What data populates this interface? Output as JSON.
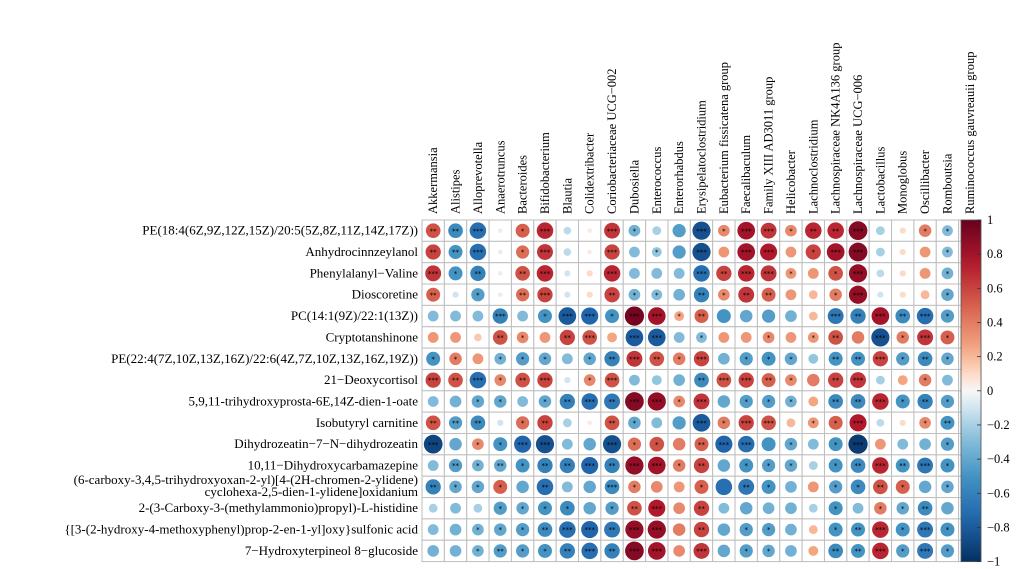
{
  "chart_data": {
    "type": "heatmap",
    "style": "correlation-circles",
    "columns": [
      "Akkermansia",
      "Alistipes",
      "Alloprevotella",
      "Anaerotruncus",
      "Bacteroides",
      "Bifidobacterium",
      "Blautia",
      "Colidextribacter",
      "Coriobacteriaceae UCG−002",
      "Dubosiella",
      "Enterococcus",
      "Enterorhabdus",
      "Erysipelatoclostridium",
      "Eubacterium fissicatena group",
      "Faecalibaculum",
      "Family XIII AD3011 group",
      "Helicobacter",
      "Lachnoclostridium",
      "Lachnospiraceae NK4A136 group",
      "Lachnospiraceae UCG−006",
      "Lactobacillus",
      "Monoglobus",
      "Oscillibacter",
      "Romboutsia",
      "Ruminococcus gauvreauii group"
    ],
    "rows": [
      {
        "label": "PE(18:4(6Z,9Z,12Z,15Z)/20:5(5Z,8Z,11Z,14Z,17Z))",
        "values": [
          0.55,
          -0.55,
          -0.7,
          -0.05,
          0.5,
          0.7,
          -0.15,
          0.05,
          0.65,
          -0.35,
          -0.2,
          -0.45,
          -0.85,
          0.35,
          0.8,
          0.65,
          0.35,
          0.7,
          0.7,
          0.9,
          -0.2,
          0.1,
          0.4,
          -0.3,
          -0.5
        ],
        "stars": [
          "**",
          "**",
          "***",
          "",
          "*",
          "***",
          "",
          "",
          "***",
          "*",
          "",
          "",
          "***",
          "*",
          "***",
          "***",
          "*",
          "**",
          "**",
          "***",
          "",
          "",
          "*",
          "*",
          "*"
        ]
      },
      {
        "label": "Anhydrocinnzeylanol",
        "values": [
          0.6,
          -0.5,
          -0.7,
          -0.05,
          0.45,
          0.65,
          -0.15,
          0.05,
          0.6,
          -0.3,
          -0.25,
          -0.45,
          -0.85,
          0.3,
          0.8,
          0.75,
          0.3,
          0.6,
          0.8,
          0.9,
          -0.2,
          0.1,
          0.3,
          -0.3,
          -0.45
        ],
        "stars": [
          "**",
          "**",
          "***",
          "",
          "*",
          "***",
          "",
          "",
          "***",
          "",
          "*",
          "",
          "***",
          "",
          "***",
          "***",
          "",
          "*",
          "***",
          "***",
          "",
          "",
          "",
          "*",
          "*"
        ]
      },
      {
        "label": "Phenylalanyl−Valine",
        "values": [
          0.65,
          -0.5,
          -0.6,
          -0.05,
          0.55,
          0.7,
          -0.1,
          0.1,
          0.7,
          -0.3,
          -0.3,
          -0.3,
          -0.7,
          0.6,
          0.7,
          0.65,
          0.3,
          0.3,
          0.55,
          0.85,
          -0.15,
          0.1,
          0.3,
          -0.35,
          -0.4
        ],
        "stars": [
          "***",
          "*",
          "**",
          "",
          "**",
          "***",
          "",
          "",
          "***",
          "",
          "",
          "",
          "***",
          "**",
          "***",
          "***",
          "*",
          "",
          "*",
          "***",
          "",
          "",
          "",
          "*",
          "*"
        ]
      },
      {
        "label": "Dioscoretine",
        "values": [
          0.5,
          -0.1,
          -0.45,
          -0.05,
          0.45,
          0.6,
          -0.1,
          0.1,
          0.6,
          -0.35,
          -0.3,
          -0.35,
          -0.6,
          0.35,
          0.65,
          0.5,
          0.3,
          0.2,
          0.4,
          0.85,
          -0.1,
          0.1,
          0.2,
          -0.4,
          -0.3
        ],
        "stars": [
          "**",
          "",
          "*",
          "",
          "**",
          "***",
          "",
          "",
          "**",
          "*",
          "*",
          "",
          "**",
          "*",
          "**",
          "**",
          "",
          "",
          "*",
          "***",
          "",
          "",
          "",
          "*",
          ""
        ]
      },
      {
        "label": "PC(14:1(9Z)/22:1(13Z))",
        "values": [
          -0.3,
          -0.3,
          -0.3,
          -0.6,
          -0.3,
          -0.5,
          -0.8,
          -0.75,
          -0.5,
          0.95,
          0.8,
          0.25,
          0.5,
          -0.5,
          -0.4,
          -0.45,
          -0.35,
          0.2,
          -0.65,
          -0.6,
          0.8,
          -0.55,
          -0.7,
          -0.45,
          -0.5
        ],
        "stars": [
          "",
          "",
          "",
          "***",
          "",
          "*",
          "***",
          "***",
          "*",
          "***",
          "***",
          "*",
          "**",
          "",
          "",
          "",
          "",
          "",
          "***",
          "**",
          "***",
          "**",
          "***",
          "*",
          "*"
        ]
      },
      {
        "label": "Cryptotanshinone",
        "values": [
          0.3,
          0.3,
          0.15,
          0.55,
          0.35,
          0.3,
          0.6,
          0.55,
          0.25,
          -0.8,
          -0.8,
          -0.3,
          -0.3,
          0.3,
          0.3,
          0.35,
          0.3,
          0.3,
          0.55,
          0.4,
          -0.85,
          0.4,
          0.65,
          0.5,
          0.2
        ],
        "stars": [
          "",
          "",
          "",
          "**",
          "*",
          "",
          "**",
          "***",
          "",
          "***",
          "***",
          "",
          "*",
          "",
          "",
          "*",
          "",
          "*",
          "**",
          "",
          "***",
          "*",
          "***",
          "*",
          ""
        ]
      },
      {
        "label": "PE(22:4(7Z,10Z,13Z,16Z)/22:6(4Z,7Z,10Z,13Z,16Z,19Z))",
        "values": [
          -0.5,
          0.4,
          0.3,
          -0.35,
          -0.45,
          -0.4,
          -0.3,
          -0.4,
          -0.6,
          0.65,
          0.55,
          0.4,
          0.6,
          -0.35,
          -0.45,
          -0.5,
          -0.4,
          -0.25,
          -0.5,
          -0.5,
          0.6,
          -0.45,
          -0.55,
          -0.4,
          -0.3
        ],
        "stars": [
          "*",
          "*",
          "",
          "*",
          "*",
          "*",
          "",
          "*",
          "**",
          "***",
          "**",
          "*",
          "***",
          "",
          "*",
          "*",
          "*",
          "",
          "**",
          "**",
          "***",
          "*",
          "**",
          "*",
          ""
        ]
      },
      {
        "label": "21−Deoxycortisol",
        "values": [
          0.6,
          0.55,
          -0.7,
          0.35,
          0.55,
          0.6,
          -0.1,
          0.35,
          0.55,
          -0.3,
          -0.25,
          -0.35,
          -0.55,
          0.55,
          0.6,
          0.5,
          0.35,
          0.4,
          0.6,
          0.65,
          -0.2,
          0.25,
          0.4,
          -0.3,
          0.25
        ],
        "stars": [
          "***",
          "**",
          "***",
          "*",
          "**",
          "***",
          "",
          "*",
          "***",
          "",
          "",
          "",
          "**",
          "***",
          "***",
          "**",
          "*",
          "",
          "**",
          "***",
          "",
          "",
          "*",
          "",
          ""
        ]
      },
      {
        "label": "5,9,11-trihydroxyprosta-6E,14Z-dien-1-oate",
        "values": [
          -0.3,
          -0.35,
          -0.4,
          -0.4,
          -0.3,
          -0.4,
          -0.6,
          -0.7,
          -0.65,
          0.9,
          0.85,
          0.35,
          0.65,
          -0.4,
          -0.45,
          -0.45,
          -0.35,
          0.25,
          -0.55,
          -0.55,
          0.7,
          -0.5,
          -0.6,
          -0.45,
          -0.45
        ],
        "stars": [
          "",
          "",
          "*",
          "*",
          "",
          "*",
          "**",
          "***",
          "**",
          "***",
          "***",
          "*",
          "***",
          "",
          "*",
          "*",
          "*",
          "",
          "**",
          "**",
          "***",
          "*",
          "**",
          "*",
          ""
        ]
      },
      {
        "label": "Isobutyryl carnitine",
        "values": [
          0.55,
          -0.45,
          -0.55,
          -0.1,
          0.45,
          0.6,
          -0.2,
          0.05,
          0.55,
          -0.4,
          -0.3,
          -0.45,
          -0.8,
          0.4,
          0.6,
          0.55,
          0.2,
          0.3,
          0.5,
          0.75,
          -0.15,
          0.1,
          0.35,
          -0.5,
          -0.3
        ],
        "stars": [
          "**",
          "**",
          "**",
          "",
          "*",
          "**",
          "",
          "",
          "**",
          "*",
          "",
          "",
          "***",
          "*",
          "***",
          "***",
          "",
          "*",
          "*",
          "***",
          "",
          "",
          "*",
          "**",
          ""
        ]
      },
      {
        "label": "Dihydrozeatin−7−N−dihydrozeatin",
        "values": [
          -0.9,
          -0.4,
          0.35,
          -0.5,
          -0.75,
          -0.85,
          -0.3,
          -0.4,
          -0.85,
          0.45,
          0.55,
          0.4,
          0.5,
          -0.75,
          -0.7,
          -0.5,
          -0.4,
          -0.3,
          -0.5,
          -0.95,
          0.3,
          -0.3,
          -0.35,
          -0.45,
          0.3
        ],
        "stars": [
          "***",
          "",
          "*",
          "*",
          "***",
          "***",
          "",
          "",
          "***",
          "*",
          "*",
          "",
          "**",
          "***",
          "***",
          "",
          "*",
          "",
          "*",
          "***",
          "",
          "",
          "",
          "*",
          ""
        ]
      },
      {
        "label": "10,11−Dihydroxycarbamazepine",
        "values": [
          -0.3,
          -0.45,
          -0.35,
          -0.4,
          -0.5,
          -0.6,
          -0.6,
          -0.75,
          -0.6,
          0.85,
          0.8,
          0.4,
          0.6,
          -0.4,
          -0.5,
          -0.45,
          -0.4,
          -0.2,
          -0.5,
          -0.55,
          0.7,
          -0.5,
          -0.65,
          -0.5,
          -0.5
        ],
        "stars": [
          "",
          "**",
          "*",
          "**",
          "*",
          "**",
          "**",
          "***",
          "**",
          "***",
          "***",
          "*",
          "**",
          "",
          "*",
          "*",
          "*",
          "",
          "*",
          "**",
          "***",
          "**",
          "***",
          "*",
          "*"
        ]
      },
      {
        "label": "(6-carboxy-3,4,5-trihydroxyoxan-2-yl)[4-(2H-chromen-2-ylidene)\ncyclohexa-2,5-dien-1-ylidene]oxidanium",
        "values": [
          -0.6,
          -0.4,
          -0.4,
          0.5,
          -0.4,
          -0.7,
          -0.3,
          -0.4,
          -0.55,
          0.4,
          0.35,
          0.3,
          0.5,
          -0.7,
          -0.65,
          -0.5,
          -0.35,
          0.3,
          -0.45,
          -0.55,
          0.55,
          0.5,
          -0.4,
          -0.4,
          -0.3
        ],
        "stars": [
          "**",
          "*",
          "*",
          "*",
          "",
          "**",
          "",
          "",
          "***",
          "*",
          "",
          "",
          "*",
          "",
          "**",
          "*",
          "",
          "",
          "*",
          "*",
          "**",
          "*",
          "",
          "*",
          ""
        ]
      },
      {
        "label": "2-(3-Carboxy-3-(methylammonio)propyl)-L-histidine",
        "values": [
          -0.2,
          -0.3,
          -0.2,
          -0.45,
          -0.4,
          -0.5,
          -0.55,
          -0.4,
          -0.45,
          0.55,
          0.75,
          0.35,
          0.6,
          -0.3,
          -0.4,
          -0.35,
          -0.35,
          -0.2,
          -0.5,
          -0.3,
          0.4,
          -0.4,
          -0.55,
          -0.4,
          -0.4
        ],
        "stars": [
          "",
          "",
          "",
          "*",
          "*",
          "*",
          "*",
          "",
          "*",
          "**",
          "***",
          "",
          "**",
          "",
          "",
          "",
          "",
          "",
          "*",
          "",
          "*",
          "*",
          "**",
          "",
          ""
        ]
      },
      {
        "label": "{[3-(2-hydroxy-4-methoxyphenyl)prop-2-en-1-yl]oxy}sulfonic acid",
        "values": [
          -0.3,
          -0.35,
          -0.35,
          -0.4,
          -0.45,
          -0.55,
          -0.7,
          -0.75,
          -0.65,
          0.85,
          0.85,
          0.4,
          0.6,
          -0.4,
          -0.45,
          -0.45,
          -0.35,
          0.2,
          -0.5,
          -0.5,
          0.7,
          -0.5,
          -0.65,
          -0.5,
          -0.45
        ],
        "stars": [
          "",
          "",
          "*",
          "*",
          "*",
          "**",
          "***",
          "***",
          "**",
          "***",
          "***",
          "",
          "**",
          "",
          "*",
          "*",
          "",
          "",
          "*",
          "**",
          "***",
          "*",
          "***",
          "*",
          ""
        ]
      },
      {
        "label": "7−Hydroxyterpineol 8−glucoside",
        "values": [
          -0.35,
          -0.35,
          -0.35,
          -0.45,
          -0.45,
          -0.5,
          -0.6,
          -0.7,
          -0.6,
          0.9,
          0.8,
          0.35,
          0.65,
          -0.4,
          -0.45,
          -0.4,
          -0.35,
          0.25,
          -0.55,
          -0.5,
          0.7,
          -0.45,
          -0.65,
          -0.45,
          -0.45
        ],
        "stars": [
          "",
          "",
          "*",
          "**",
          "*",
          "*",
          "**",
          "***",
          "**",
          "***",
          "***",
          "",
          "***",
          "",
          "*",
          "*",
          "",
          "",
          "**",
          "**",
          "***",
          "*",
          "***",
          "*",
          ""
        ]
      }
    ],
    "colorbar": {
      "ticks": [
        "1",
        "0.8",
        "0.6",
        "0.4",
        "0.2",
        "0",
        "−0.2",
        "−0.4",
        "−0.6",
        "−0.8",
        "−1"
      ],
      "range": [
        -1,
        1
      ]
    },
    "colors": {
      "negative": "#053061",
      "neutral": "#f7f7f7",
      "positive": "#67001f",
      "grid": "#bebebe"
    }
  }
}
